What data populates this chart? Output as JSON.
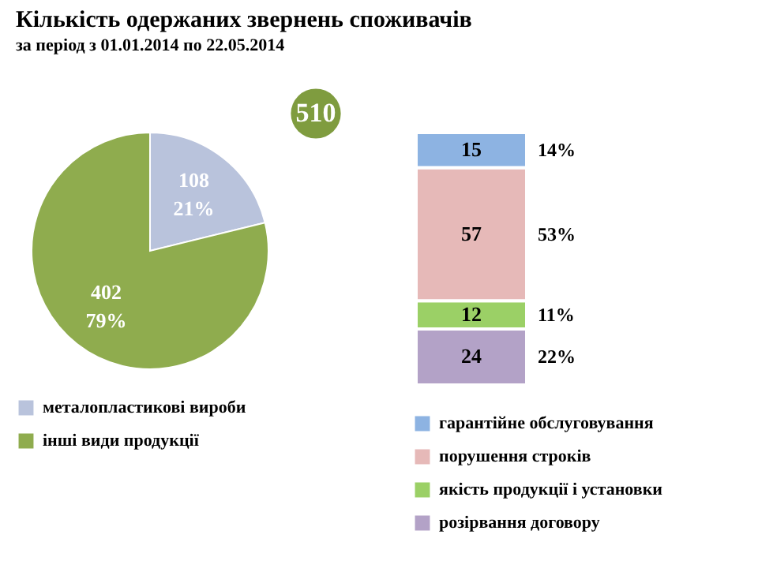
{
  "chart_data": [
    {
      "type": "pie",
      "title": "Кількість одержаних звернень споживачів",
      "subtitle": "за період з 01.01.2014 по 22.05.2014",
      "categories": [
        "металопластикові вироби",
        "інші види продукції"
      ],
      "values": [
        108,
        402
      ],
      "colors": [
        "#b9c3dc",
        "#8fac4e"
      ],
      "data_labels": true,
      "legend": "bottom left",
      "annotations": [
        "21%",
        "79%",
        "510"
      ]
    },
    {
      "type": "bar",
      "stacked": true,
      "categories": [
        null
      ],
      "data_labels": true,
      "legend": "bottom",
      "series": [
        {
          "name": "розірвання договору",
          "color": "#b3a2c7",
          "values": [
            24
          ]
        },
        {
          "name": "якість продукції і установки",
          "color": "#9bd066",
          "values": [
            12
          ]
        },
        {
          "name": "порушення строків",
          "color": "#e6b9b8",
          "values": [
            57
          ]
        },
        {
          "name": "гарантійне обслуговування",
          "color": "#8db3e2",
          "values": [
            15
          ]
        }
      ],
      "annotations": [
        "22%",
        "11%",
        "53%",
        "14%"
      ]
    }
  ]
}
